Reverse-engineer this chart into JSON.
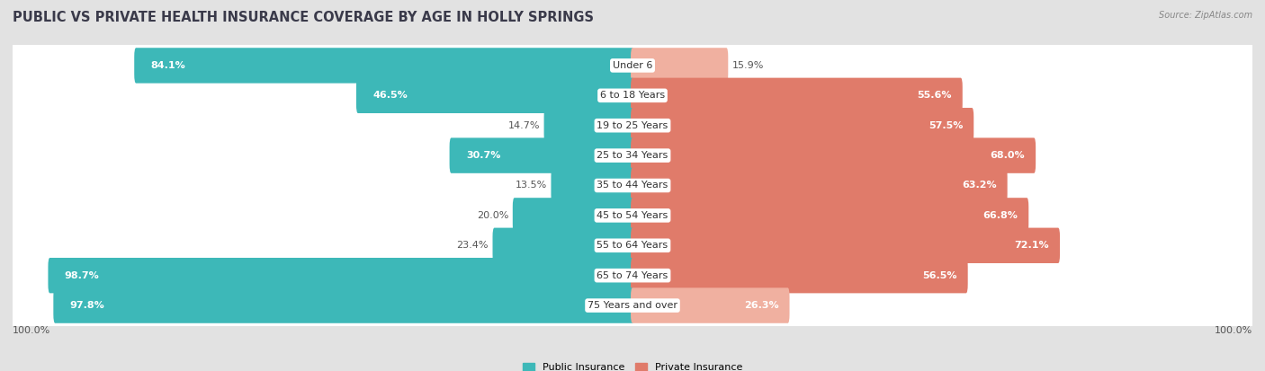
{
  "title": "PUBLIC VS PRIVATE HEALTH INSURANCE COVERAGE BY AGE IN HOLLY SPRINGS",
  "source": "Source: ZipAtlas.com",
  "categories": [
    "Under 6",
    "6 to 18 Years",
    "19 to 25 Years",
    "25 to 34 Years",
    "35 to 44 Years",
    "45 to 54 Years",
    "55 to 64 Years",
    "65 to 74 Years",
    "75 Years and over"
  ],
  "public_values": [
    84.1,
    46.5,
    14.7,
    30.7,
    13.5,
    20.0,
    23.4,
    98.7,
    97.8
  ],
  "private_values": [
    15.9,
    55.6,
    57.5,
    68.0,
    63.2,
    66.8,
    72.1,
    56.5,
    26.3
  ],
  "public_color": "#3db8b8",
  "private_color": "#e07b6a",
  "private_color_light": "#f0b0a0",
  "public_label": "Public Insurance",
  "private_label": "Private Insurance",
  "bg_color": "#e2e2e2",
  "row_bg_color": "#ffffff",
  "row_border_color": "#cccccc",
  "max_value": 100.0,
  "title_fontsize": 10.5,
  "label_fontsize": 8,
  "annotation_fontsize": 8,
  "axis_label_fontsize": 8,
  "title_color": "#3a3a4a",
  "source_color": "#888888",
  "dark_text_color": "#555555",
  "white_text_color": "#ffffff"
}
